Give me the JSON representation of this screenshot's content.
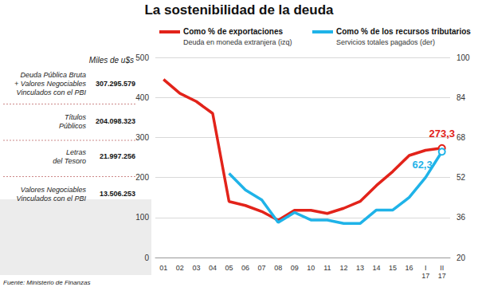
{
  "chart_data": {
    "type": "line",
    "title": "La sostenibilidad de la deuda",
    "categories": [
      "01",
      "02",
      "03",
      "04",
      "05",
      "06",
      "07",
      "08",
      "09",
      "10",
      "11",
      "12",
      "13",
      "14",
      "15",
      "16",
      "I\n17",
      "II\n17"
    ],
    "series": [
      {
        "name": "Como % de exportaciones",
        "subtitle": "Deuda en moneda extranjera (izq)",
        "color": "#e2231a",
        "axis": "y",
        "values": [
          445,
          410,
          390,
          360,
          140,
          130,
          115,
          93,
          118,
          118,
          110,
          123,
          140,
          180,
          215,
          255,
          268,
          273.3
        ],
        "value_labels": [
          null,
          null,
          null,
          null,
          null,
          null,
          null,
          null,
          null,
          null,
          null,
          null,
          null,
          null,
          null,
          null,
          null,
          "273,3"
        ]
      },
      {
        "name": "Como % de los recursos tributarios",
        "subtitle": "Servicios totales pagados (der)",
        "color": "#1fb3e8",
        "axis": "y2",
        "values": [
          null,
          null,
          null,
          null,
          53.6,
          47,
          43,
          34,
          38,
          35,
          35,
          33.6,
          33.6,
          39,
          39,
          44,
          52,
          62.3
        ],
        "value_labels": [
          null,
          null,
          null,
          null,
          null,
          null,
          null,
          null,
          null,
          null,
          null,
          null,
          null,
          null,
          null,
          null,
          null,
          "62,3"
        ]
      }
    ],
    "ylim": [
      0,
      500
    ],
    "yticks": [
      0,
      100,
      200,
      300,
      400,
      500
    ],
    "y2lim": [
      20,
      100
    ],
    "y2ticks": [
      20,
      36,
      52,
      68,
      84,
      100
    ],
    "grid": true,
    "data_labels": true
  },
  "panel": {
    "unit": "Miles de u$s",
    "rows": [
      {
        "label": "Deuda Pública Bruta\n+ Valores Negociables\nVinculados con el PBI",
        "value": "307.295.579"
      },
      {
        "label": "Títulos\nPúblicos",
        "value": "204.098.323"
      },
      {
        "label": "Letras\ndel Tesoro",
        "value": "21.997.256"
      },
      {
        "label": "Valores Negociables\nVinculados con el PBI",
        "value": "13.506.253"
      }
    ]
  },
  "source": "Fuente: Ministerio de Finanzas"
}
